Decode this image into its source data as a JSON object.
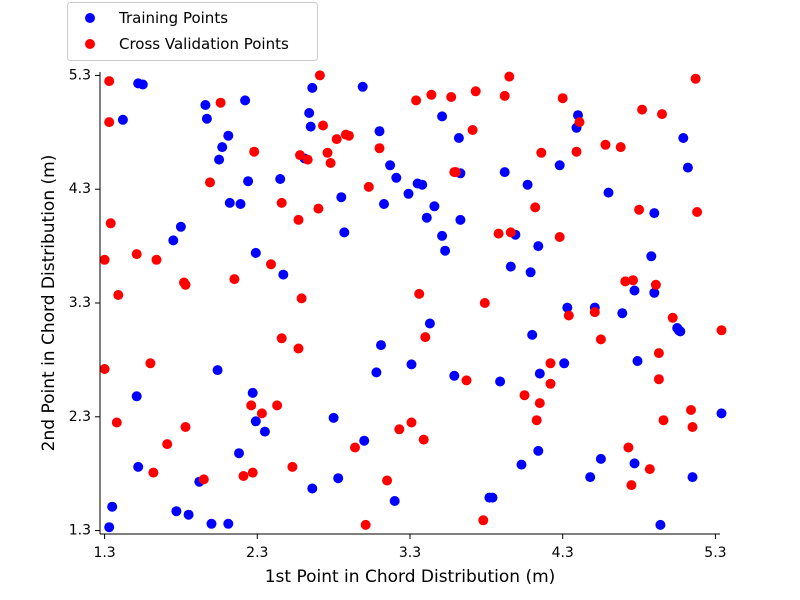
{
  "chart_data": {
    "type": "scatter",
    "xlabel": "1st Point in Chord Distribution (m)",
    "ylabel": "2nd Point in Chord Distribution (m)",
    "xlim": [
      1.27,
      5.33
    ],
    "ylim": [
      1.27,
      5.33
    ],
    "xticks": [
      "1.3",
      "2.3",
      "3.3",
      "4.3",
      "5.3"
    ],
    "yticks": [
      "1.3",
      "2.3",
      "3.3",
      "4.3",
      "5.3"
    ],
    "xtick_values": [
      1.3,
      2.3,
      3.3,
      4.3,
      5.3
    ],
    "ytick_values": [
      1.3,
      2.3,
      3.3,
      4.3,
      5.3
    ],
    "grid": false,
    "legend_position": "top-left, above plot",
    "series": [
      {
        "name": "Training Points",
        "color": "#0000ff",
        "points": [
          [
            1.33,
            1.33
          ],
          [
            1.35,
            1.51
          ],
          [
            1.42,
            4.91
          ],
          [
            1.51,
            2.48
          ],
          [
            1.52,
            1.86
          ],
          [
            1.52,
            5.23
          ],
          [
            1.55,
            5.22
          ],
          [
            1.75,
            3.85
          ],
          [
            1.77,
            1.47
          ],
          [
            1.8,
            3.97
          ],
          [
            1.85,
            1.44
          ],
          [
            1.92,
            1.73
          ],
          [
            1.96,
            5.04
          ],
          [
            1.97,
            4.92
          ],
          [
            2.0,
            1.36
          ],
          [
            2.04,
            2.71
          ],
          [
            2.05,
            4.56
          ],
          [
            2.07,
            4.67
          ],
          [
            2.11,
            4.77
          ],
          [
            2.11,
            1.36
          ],
          [
            2.12,
            4.18
          ],
          [
            2.18,
            1.98
          ],
          [
            2.19,
            4.17
          ],
          [
            2.22,
            5.08
          ],
          [
            2.24,
            4.37
          ],
          [
            2.27,
            2.51
          ],
          [
            2.29,
            2.26
          ],
          [
            2.29,
            3.74
          ],
          [
            2.35,
            2.17
          ],
          [
            2.45,
            4.39
          ],
          [
            2.47,
            3.55
          ],
          [
            2.61,
            4.57
          ],
          [
            2.64,
            4.97
          ],
          [
            2.66,
            1.67
          ],
          [
            2.66,
            5.19
          ],
          [
            2.65,
            4.85
          ],
          [
            2.8,
            2.29
          ],
          [
            2.83,
            1.76
          ],
          [
            2.85,
            4.23
          ],
          [
            2.87,
            3.92
          ],
          [
            2.99,
            5.2
          ],
          [
            3.0,
            2.09
          ],
          [
            3.08,
            2.69
          ],
          [
            3.1,
            4.81
          ],
          [
            3.11,
            2.93
          ],
          [
            3.13,
            4.17
          ],
          [
            3.17,
            4.51
          ],
          [
            3.2,
            1.56
          ],
          [
            3.21,
            4.4
          ],
          [
            3.29,
            4.26
          ],
          [
            3.31,
            2.76
          ],
          [
            3.35,
            4.35
          ],
          [
            3.38,
            4.34
          ],
          [
            3.41,
            4.05
          ],
          [
            3.43,
            3.12
          ],
          [
            3.46,
            4.15
          ],
          [
            3.51,
            3.89
          ],
          [
            3.53,
            3.76
          ],
          [
            3.51,
            4.94
          ],
          [
            3.59,
            2.66
          ],
          [
            3.63,
            4.03
          ],
          [
            3.63,
            4.44
          ],
          [
            3.62,
            4.75
          ],
          [
            3.82,
            1.59
          ],
          [
            3.84,
            1.59
          ],
          [
            3.89,
            2.61
          ],
          [
            3.92,
            4.45
          ],
          [
            3.96,
            3.62
          ],
          [
            3.99,
            3.9
          ],
          [
            4.03,
            1.88
          ],
          [
            4.07,
            4.34
          ],
          [
            4.09,
            3.57
          ],
          [
            4.1,
            3.02
          ],
          [
            4.14,
            2.0
          ],
          [
            4.14,
            3.8
          ],
          [
            4.15,
            2.68
          ],
          [
            4.28,
            4.51
          ],
          [
            4.31,
            2.77
          ],
          [
            4.33,
            3.26
          ],
          [
            4.39,
            4.84
          ],
          [
            4.4,
            4.95
          ],
          [
            4.48,
            1.77
          ],
          [
            4.51,
            3.26
          ],
          [
            4.55,
            1.93
          ],
          [
            4.6,
            4.27
          ],
          [
            4.69,
            3.21
          ],
          [
            4.77,
            3.41
          ],
          [
            4.77,
            1.89
          ],
          [
            4.79,
            2.79
          ],
          [
            4.88,
            3.71
          ],
          [
            4.9,
            3.39
          ],
          [
            4.9,
            4.09
          ],
          [
            4.94,
            1.35
          ],
          [
            5.05,
            3.08
          ],
          [
            5.06,
            3.06
          ],
          [
            5.07,
            3.05
          ],
          [
            5.09,
            4.75
          ],
          [
            5.12,
            4.49
          ],
          [
            5.15,
            1.77
          ],
          [
            5.34,
            2.33
          ]
        ]
      },
      {
        "name": "Cross Validation Points",
        "color": "#ff0000",
        "points": [
          [
            1.3,
            3.68
          ],
          [
            1.3,
            2.72
          ],
          [
            1.33,
            5.25
          ],
          [
            1.33,
            4.89
          ],
          [
            1.34,
            4.0
          ],
          [
            1.38,
            2.25
          ],
          [
            1.39,
            3.37
          ],
          [
            1.51,
            3.73
          ],
          [
            1.6,
            2.77
          ],
          [
            1.62,
            1.81
          ],
          [
            1.64,
            3.68
          ],
          [
            1.71,
            2.06
          ],
          [
            1.82,
            3.48
          ],
          [
            1.83,
            3.46
          ],
          [
            1.83,
            2.21
          ],
          [
            1.95,
            1.75
          ],
          [
            1.99,
            4.36
          ],
          [
            2.06,
            5.06
          ],
          [
            2.15,
            3.51
          ],
          [
            2.21,
            1.78
          ],
          [
            2.26,
            2.4
          ],
          [
            2.27,
            1.81
          ],
          [
            2.28,
            4.63
          ],
          [
            2.33,
            2.33
          ],
          [
            2.39,
            3.64
          ],
          [
            2.43,
            2.4
          ],
          [
            2.46,
            4.18
          ],
          [
            2.46,
            2.99
          ],
          [
            2.53,
            1.86
          ],
          [
            2.57,
            2.9
          ],
          [
            2.57,
            4.03
          ],
          [
            2.59,
            3.34
          ],
          [
            2.58,
            4.6
          ],
          [
            2.63,
            4.56
          ],
          [
            2.7,
            4.13
          ],
          [
            2.71,
            5.3
          ],
          [
            2.73,
            4.86
          ],
          [
            2.76,
            4.62
          ],
          [
            2.78,
            4.53
          ],
          [
            2.82,
            4.74
          ],
          [
            2.88,
            4.78
          ],
          [
            2.9,
            4.77
          ],
          [
            2.94,
            2.03
          ],
          [
            3.01,
            1.35
          ],
          [
            3.03,
            4.32
          ],
          [
            3.1,
            4.66
          ],
          [
            3.15,
            1.74
          ],
          [
            3.23,
            2.19
          ],
          [
            3.31,
            2.25
          ],
          [
            3.34,
            5.08
          ],
          [
            3.36,
            3.38
          ],
          [
            3.39,
            2.1
          ],
          [
            3.4,
            3.0
          ],
          [
            3.44,
            5.13
          ],
          [
            3.57,
            5.11
          ],
          [
            3.59,
            4.45
          ],
          [
            3.6,
            4.45
          ],
          [
            3.67,
            2.62
          ],
          [
            3.71,
            4.82
          ],
          [
            3.73,
            5.16
          ],
          [
            3.78,
            1.39
          ],
          [
            3.79,
            3.3
          ],
          [
            3.88,
            3.91
          ],
          [
            3.92,
            5.12
          ],
          [
            3.95,
            5.29
          ],
          [
            3.96,
            3.92
          ],
          [
            4.05,
            2.49
          ],
          [
            4.12,
            4.14
          ],
          [
            4.13,
            2.27
          ],
          [
            4.15,
            2.42
          ],
          [
            4.16,
            4.62
          ],
          [
            4.22,
            2.59
          ],
          [
            4.22,
            2.77
          ],
          [
            4.28,
            3.88
          ],
          [
            4.3,
            5.1
          ],
          [
            4.34,
            3.19
          ],
          [
            4.39,
            4.63
          ],
          [
            4.41,
            4.89
          ],
          [
            4.51,
            3.22
          ],
          [
            4.55,
            2.98
          ],
          [
            4.58,
            4.69
          ],
          [
            4.68,
            4.67
          ],
          [
            4.71,
            3.49
          ],
          [
            4.73,
            2.03
          ],
          [
            4.75,
            1.7
          ],
          [
            4.76,
            3.5
          ],
          [
            4.8,
            4.12
          ],
          [
            4.82,
            5.0
          ],
          [
            4.87,
            1.84
          ],
          [
            4.91,
            3.46
          ],
          [
            4.93,
            2.86
          ],
          [
            4.93,
            2.63
          ],
          [
            4.95,
            4.96
          ],
          [
            4.96,
            2.27
          ],
          [
            5.02,
            3.17
          ],
          [
            5.14,
            2.36
          ],
          [
            5.15,
            2.21
          ],
          [
            5.17,
            5.27
          ],
          [
            5.18,
            4.1
          ],
          [
            5.34,
            3.06
          ]
        ]
      }
    ]
  }
}
